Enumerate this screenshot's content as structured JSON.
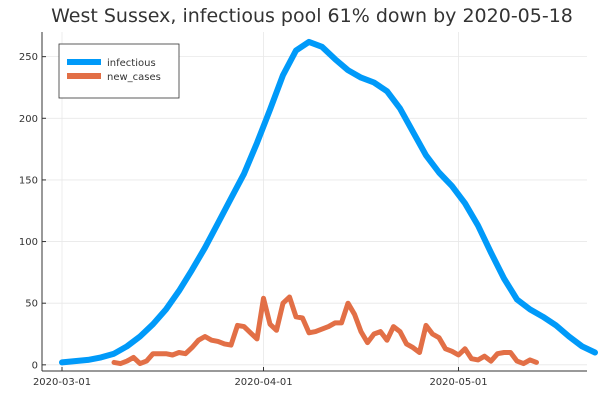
{
  "chart_data": {
    "type": "line",
    "title": "West Sussex, infectious pool 61% down by 2020-05-18",
    "xlabel": "",
    "ylabel": "",
    "x_axis": {
      "type": "date",
      "start": "2020-03-01",
      "end": "2020-05-19",
      "ticks": [
        "2020-03-01",
        "2020-04-01",
        "2020-05-01"
      ]
    },
    "ylim": [
      -5,
      270
    ],
    "y_ticks": [
      0,
      50,
      100,
      150,
      200,
      250
    ],
    "grid": true,
    "legend": "top-left",
    "series": [
      {
        "name": "infectious",
        "color": "#009af9",
        "points": [
          [
            "2020-03-01",
            2
          ],
          [
            "2020-03-03",
            3
          ],
          [
            "2020-03-05",
            4
          ],
          [
            "2020-03-07",
            6
          ],
          [
            "2020-03-09",
            9
          ],
          [
            "2020-03-11",
            15
          ],
          [
            "2020-03-13",
            23
          ],
          [
            "2020-03-15",
            33
          ],
          [
            "2020-03-17",
            45
          ],
          [
            "2020-03-19",
            60
          ],
          [
            "2020-03-21",
            77
          ],
          [
            "2020-03-23",
            95
          ],
          [
            "2020-03-25",
            115
          ],
          [
            "2020-03-27",
            135
          ],
          [
            "2020-03-29",
            155
          ],
          [
            "2020-03-31",
            180
          ],
          [
            "2020-04-02",
            207
          ],
          [
            "2020-04-04",
            235
          ],
          [
            "2020-04-06",
            255
          ],
          [
            "2020-04-08",
            262
          ],
          [
            "2020-04-10",
            258
          ],
          [
            "2020-04-12",
            248
          ],
          [
            "2020-04-14",
            239
          ],
          [
            "2020-04-16",
            233
          ],
          [
            "2020-04-18",
            229
          ],
          [
            "2020-04-20",
            222
          ],
          [
            "2020-04-22",
            208
          ],
          [
            "2020-04-24",
            189
          ],
          [
            "2020-04-26",
            170
          ],
          [
            "2020-04-28",
            156
          ],
          [
            "2020-04-30",
            145
          ],
          [
            "2020-05-02",
            131
          ],
          [
            "2020-05-04",
            113
          ],
          [
            "2020-05-06",
            91
          ],
          [
            "2020-05-08",
            70
          ],
          [
            "2020-05-10",
            53
          ],
          [
            "2020-05-12",
            45
          ],
          [
            "2020-05-14",
            39
          ],
          [
            "2020-05-16",
            32
          ],
          [
            "2020-05-18",
            23
          ],
          [
            "2020-05-20",
            15
          ],
          [
            "2020-05-22",
            10
          ]
        ]
      },
      {
        "name": "new_cases",
        "color": "#e26f46",
        "points": [
          [
            "2020-03-09",
            2
          ],
          [
            "2020-03-10",
            1
          ],
          [
            "2020-03-11",
            3
          ],
          [
            "2020-03-12",
            6
          ],
          [
            "2020-03-13",
            1
          ],
          [
            "2020-03-14",
            3
          ],
          [
            "2020-03-15",
            9
          ],
          [
            "2020-03-16",
            9
          ],
          [
            "2020-03-17",
            9
          ],
          [
            "2020-03-18",
            8
          ],
          [
            "2020-03-19",
            10
          ],
          [
            "2020-03-20",
            9
          ],
          [
            "2020-03-21",
            14
          ],
          [
            "2020-03-22",
            20
          ],
          [
            "2020-03-23",
            23
          ],
          [
            "2020-03-24",
            20
          ],
          [
            "2020-03-25",
            19
          ],
          [
            "2020-03-26",
            17
          ],
          [
            "2020-03-27",
            16
          ],
          [
            "2020-03-28",
            32
          ],
          [
            "2020-03-29",
            31
          ],
          [
            "2020-03-30",
            26
          ],
          [
            "2020-03-31",
            21
          ],
          [
            "2020-04-01",
            54
          ],
          [
            "2020-04-02",
            33
          ],
          [
            "2020-04-03",
            28
          ],
          [
            "2020-04-04",
            50
          ],
          [
            "2020-04-05",
            55
          ],
          [
            "2020-04-06",
            39
          ],
          [
            "2020-04-07",
            38
          ],
          [
            "2020-04-08",
            26
          ],
          [
            "2020-04-09",
            27
          ],
          [
            "2020-04-10",
            29
          ],
          [
            "2020-04-11",
            31
          ],
          [
            "2020-04-12",
            34
          ],
          [
            "2020-04-13",
            34
          ],
          [
            "2020-04-14",
            50
          ],
          [
            "2020-04-15",
            41
          ],
          [
            "2020-04-16",
            27
          ],
          [
            "2020-04-17",
            18
          ],
          [
            "2020-04-18",
            25
          ],
          [
            "2020-04-19",
            27
          ],
          [
            "2020-04-20",
            20
          ],
          [
            "2020-04-21",
            31
          ],
          [
            "2020-04-22",
            27
          ],
          [
            "2020-04-23",
            17
          ],
          [
            "2020-04-24",
            14
          ],
          [
            "2020-04-25",
            10
          ],
          [
            "2020-04-26",
            32
          ],
          [
            "2020-04-27",
            25
          ],
          [
            "2020-04-28",
            22
          ],
          [
            "2020-04-29",
            13
          ],
          [
            "2020-04-30",
            11
          ],
          [
            "2020-05-01",
            8
          ],
          [
            "2020-05-02",
            13
          ],
          [
            "2020-05-03",
            5
          ],
          [
            "2020-05-04",
            4
          ],
          [
            "2020-05-05",
            7
          ],
          [
            "2020-05-06",
            3
          ],
          [
            "2020-05-07",
            9
          ],
          [
            "2020-05-08",
            10
          ],
          [
            "2020-05-09",
            10
          ],
          [
            "2020-05-10",
            3
          ],
          [
            "2020-05-11",
            1
          ],
          [
            "2020-05-12",
            4
          ],
          [
            "2020-05-13",
            2
          ]
        ]
      }
    ]
  }
}
